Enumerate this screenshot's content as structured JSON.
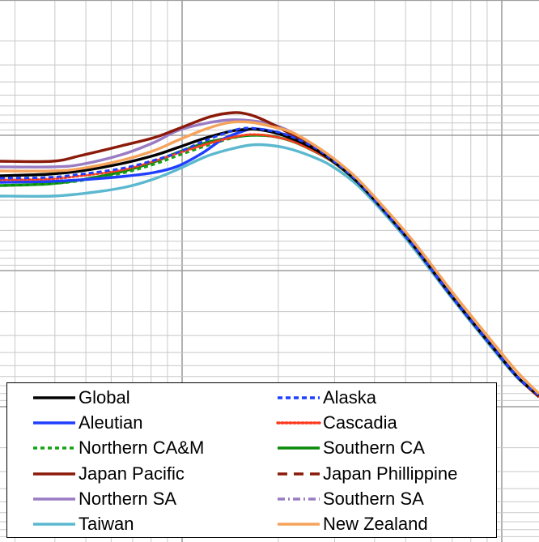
{
  "chart_data": {
    "type": "line",
    "title": "",
    "xlabel": "",
    "ylabel": "",
    "x_scale": "log",
    "y_scale": "log",
    "grid": true,
    "legend_placement": "bottom-left",
    "series": [
      {
        "name": "Global",
        "color": "#000000",
        "dash": "solid",
        "points": [
          [
            0,
            217
          ],
          [
            60,
            215
          ],
          [
            100,
            211
          ],
          [
            150,
            202
          ],
          [
            190,
            192
          ],
          [
            220,
            182
          ],
          [
            255,
            170
          ],
          [
            285,
            162
          ],
          [
            300,
            160
          ],
          [
            320,
            160
          ],
          [
            350,
            167
          ],
          [
            385,
            182
          ],
          [
            410,
            198
          ],
          [
            440,
            223
          ],
          [
            470,
            255
          ],
          [
            510,
            302
          ],
          [
            560,
            368
          ],
          [
            610,
            430
          ],
          [
            640,
            466
          ],
          [
            666,
            488
          ]
        ]
      },
      {
        "name": "Alaska",
        "color": "#1f3fff",
        "dash": "6,4",
        "points": [
          [
            0,
            220
          ],
          [
            60,
            219
          ],
          [
            100,
            215
          ],
          [
            150,
            208
          ],
          [
            190,
            198
          ],
          [
            220,
            188
          ],
          [
            255,
            173
          ],
          [
            285,
            162
          ],
          [
            305,
            158
          ],
          [
            325,
            160
          ],
          [
            350,
            165
          ],
          [
            385,
            180
          ],
          [
            410,
            197
          ],
          [
            440,
            222
          ],
          [
            470,
            255
          ],
          [
            510,
            302
          ],
          [
            560,
            368
          ],
          [
            610,
            430
          ],
          [
            640,
            466
          ],
          [
            666,
            488
          ]
        ]
      },
      {
        "name": "Aleutian",
        "color": "#1f3fff",
        "dash": "solid",
        "points": [
          [
            0,
            225
          ],
          [
            60,
            224
          ],
          [
            100,
            222
          ],
          [
            150,
            218
          ],
          [
            190,
            213
          ],
          [
            220,
            205
          ],
          [
            250,
            189
          ],
          [
            275,
            172
          ],
          [
            300,
            162
          ],
          [
            315,
            159
          ],
          [
            340,
            163
          ],
          [
            375,
            174
          ],
          [
            410,
            196
          ],
          [
            440,
            222
          ],
          [
            470,
            255
          ],
          [
            510,
            302
          ],
          [
            560,
            368
          ],
          [
            610,
            430
          ],
          [
            640,
            466
          ],
          [
            666,
            488
          ]
        ]
      },
      {
        "name": "Cascadia",
        "color": "#ff3b1f",
        "dash": "2,3",
        "points": [
          [
            0,
            222
          ],
          [
            60,
            221
          ],
          [
            100,
            217
          ],
          [
            150,
            210
          ],
          [
            190,
            199
          ],
          [
            220,
            189
          ],
          [
            255,
            178
          ],
          [
            285,
            170
          ],
          [
            310,
            166
          ],
          [
            335,
            168
          ],
          [
            360,
            174
          ],
          [
            385,
            185
          ],
          [
            410,
            199
          ],
          [
            440,
            223
          ],
          [
            470,
            255
          ],
          [
            510,
            302
          ],
          [
            560,
            368
          ],
          [
            610,
            430
          ],
          [
            640,
            466
          ],
          [
            666,
            488
          ]
        ]
      },
      {
        "name": "Northern CA&M",
        "color": "#15a015",
        "dash": "5,4",
        "points": [
          [
            0,
            229
          ],
          [
            60,
            227
          ],
          [
            100,
            223
          ],
          [
            150,
            214
          ],
          [
            190,
            203
          ],
          [
            220,
            192
          ],
          [
            255,
            180
          ],
          [
            285,
            171
          ],
          [
            310,
            167
          ],
          [
            335,
            168
          ],
          [
            360,
            174
          ],
          [
            385,
            185
          ],
          [
            410,
            199
          ],
          [
            440,
            223
          ],
          [
            470,
            255
          ],
          [
            510,
            302
          ],
          [
            560,
            368
          ],
          [
            610,
            430
          ],
          [
            640,
            466
          ],
          [
            666,
            488
          ]
        ]
      },
      {
        "name": "Southern CA",
        "color": "#0a8a0a",
        "dash": "solid",
        "points": [
          [
            0,
            229
          ],
          [
            60,
            227
          ],
          [
            100,
            222
          ],
          [
            150,
            212
          ],
          [
            190,
            200
          ],
          [
            220,
            188
          ],
          [
            255,
            176
          ],
          [
            285,
            170
          ],
          [
            310,
            167
          ],
          [
            335,
            168
          ],
          [
            360,
            174
          ],
          [
            385,
            185
          ],
          [
            410,
            199
          ],
          [
            440,
            223
          ],
          [
            470,
            255
          ],
          [
            510,
            302
          ],
          [
            560,
            368
          ],
          [
            610,
            430
          ],
          [
            640,
            466
          ],
          [
            666,
            488
          ]
        ]
      },
      {
        "name": "Japan Pacific",
        "color": "#8b1a0a",
        "dash": "solid",
        "points": [
          [
            0,
            199
          ],
          [
            65,
            199
          ],
          [
            100,
            192
          ],
          [
            150,
            180
          ],
          [
            190,
            170
          ],
          [
            220,
            159
          ],
          [
            260,
            144
          ],
          [
            290,
            139
          ],
          [
            310,
            142
          ],
          [
            330,
            150
          ],
          [
            355,
            163
          ],
          [
            385,
            179
          ],
          [
            410,
            197
          ],
          [
            440,
            222
          ],
          [
            470,
            255
          ],
          [
            510,
            302
          ],
          [
            560,
            368
          ],
          [
            610,
            430
          ],
          [
            640,
            466
          ],
          [
            666,
            490
          ]
        ]
      },
      {
        "name": "Japan Phillippine",
        "color": "#8b1a0a",
        "dash": "12,8",
        "points": [
          [
            0,
            199
          ],
          [
            65,
            199
          ],
          [
            100,
            192
          ],
          [
            150,
            180
          ],
          [
            190,
            170
          ],
          [
            220,
            159
          ],
          [
            260,
            144
          ],
          [
            290,
            139
          ],
          [
            310,
            142
          ],
          [
            330,
            150
          ],
          [
            355,
            163
          ],
          [
            385,
            179
          ],
          [
            410,
            197
          ],
          [
            440,
            222
          ],
          [
            470,
            255
          ],
          [
            510,
            302
          ],
          [
            560,
            368
          ],
          [
            610,
            430
          ],
          [
            640,
            466
          ],
          [
            666,
            490
          ]
        ]
      },
      {
        "name": "Northern SA",
        "color": "#9a7cc4",
        "dash": "solid",
        "points": [
          [
            0,
            206
          ],
          [
            65,
            206
          ],
          [
            100,
            203
          ],
          [
            150,
            191
          ],
          [
            190,
            176
          ],
          [
            220,
            161
          ],
          [
            255,
            152
          ],
          [
            285,
            148
          ],
          [
            310,
            149
          ],
          [
            335,
            153
          ],
          [
            360,
            163
          ],
          [
            385,
            178
          ],
          [
            410,
            196
          ],
          [
            440,
            222
          ],
          [
            470,
            255
          ],
          [
            510,
            302
          ],
          [
            560,
            368
          ],
          [
            610,
            430
          ],
          [
            640,
            466
          ],
          [
            666,
            488
          ]
        ]
      },
      {
        "name": "Southern SA",
        "color": "#9a7cc4",
        "dash": "9,4,2,4",
        "points": [
          [
            0,
            206
          ],
          [
            65,
            206
          ],
          [
            100,
            203
          ],
          [
            150,
            191
          ],
          [
            190,
            176
          ],
          [
            220,
            161
          ],
          [
            255,
            152
          ],
          [
            285,
            148
          ],
          [
            310,
            149
          ],
          [
            335,
            153
          ],
          [
            360,
            163
          ],
          [
            385,
            178
          ],
          [
            410,
            196
          ],
          [
            440,
            222
          ],
          [
            470,
            255
          ],
          [
            510,
            302
          ],
          [
            560,
            368
          ],
          [
            610,
            430
          ],
          [
            640,
            466
          ],
          [
            666,
            488
          ]
        ]
      },
      {
        "name": "Taiwan",
        "color": "#5bb8cf",
        "dash": "solid",
        "points": [
          [
            0,
            242
          ],
          [
            65,
            242
          ],
          [
            110,
            238
          ],
          [
            155,
            231
          ],
          [
            190,
            221
          ],
          [
            220,
            209
          ],
          [
            255,
            193
          ],
          [
            285,
            184
          ],
          [
            310,
            179
          ],
          [
            330,
            179
          ],
          [
            355,
            183
          ],
          [
            385,
            193
          ],
          [
            410,
            205
          ],
          [
            440,
            227
          ],
          [
            470,
            258
          ],
          [
            510,
            305
          ],
          [
            560,
            370
          ],
          [
            610,
            432
          ],
          [
            640,
            467
          ],
          [
            666,
            488
          ]
        ]
      },
      {
        "name": "New Zealand",
        "color": "#f5a35a",
        "dash": "solid",
        "points": [
          [
            0,
            211
          ],
          [
            65,
            211
          ],
          [
            100,
            208
          ],
          [
            150,
            198
          ],
          [
            190,
            186
          ],
          [
            220,
            173
          ],
          [
            255,
            159
          ],
          [
            285,
            151
          ],
          [
            310,
            151
          ],
          [
            335,
            156
          ],
          [
            360,
            163
          ],
          [
            385,
            177
          ],
          [
            410,
            194
          ],
          [
            440,
            219
          ],
          [
            470,
            251
          ],
          [
            510,
            297
          ],
          [
            560,
            362
          ],
          [
            610,
            424
          ],
          [
            640,
            460
          ],
          [
            666,
            486
          ]
        ]
      }
    ],
    "legend": {
      "columns": [
        [
          "Global",
          "Aleutian",
          "Northern CA&M",
          "Japan Pacific",
          "Northern SA",
          "Taiwan"
        ],
        [
          "Alaska",
          "Cascadia",
          "Southern CA",
          "Japan Phillippine",
          "Southern SA",
          "New Zealand"
        ]
      ]
    }
  }
}
